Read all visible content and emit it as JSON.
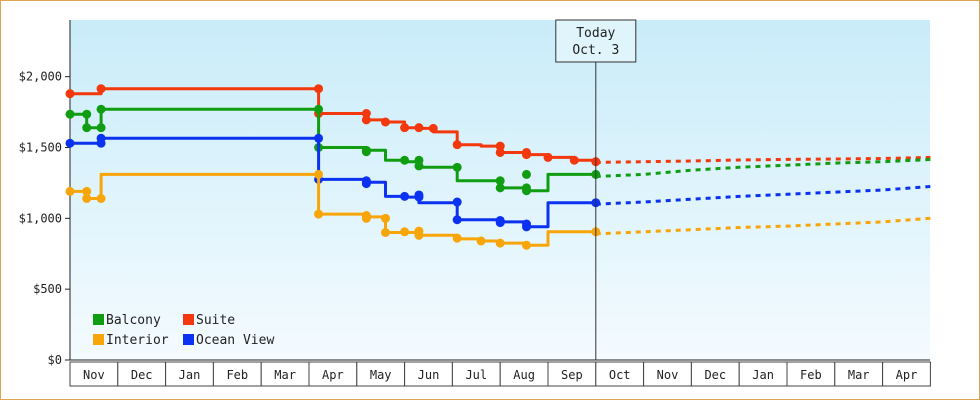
{
  "chart_data": {
    "type": "line",
    "ylim": [
      0,
      2400
    ],
    "y_ticks": [
      "$0",
      "$500",
      "$1,000",
      "$1,500",
      "$2,000"
    ],
    "y_tick_values": [
      0,
      500,
      1000,
      1500,
      2000
    ],
    "months": [
      "Nov",
      "Dec",
      "Jan",
      "Feb",
      "Mar",
      "Apr",
      "May",
      "Jun",
      "Jul",
      "Aug",
      "Sep",
      "Oct",
      "Nov",
      "Dec",
      "Jan",
      "Feb",
      "Mar",
      "Apr"
    ],
    "today": {
      "line1": "Today",
      "line2": "Oct. 3",
      "x": 11.0
    },
    "legend": [
      {
        "name": "Balcony",
        "color": "#119d11"
      },
      {
        "name": "Suite",
        "color": "#f2380c"
      },
      {
        "name": "Interior",
        "color": "#f7a509"
      },
      {
        "name": "Ocean View",
        "color": "#0b32f0"
      }
    ],
    "series": [
      {
        "name": "Suite",
        "color": "#f2380c",
        "x": [
          0.0,
          0.65,
          0.65,
          5.2,
          5.2,
          6.2,
          6.2,
          6.6,
          6.6,
          7.0,
          7.0,
          7.3,
          7.3,
          7.6,
          7.6,
          8.1,
          8.1,
          8.6,
          8.6,
          9.0,
          9.0,
          9.55,
          9.55,
          10.0,
          10.0,
          10.55,
          10.55,
          11.0
        ],
        "y": [
          1880,
          1880,
          1915,
          1915,
          1740,
          1740,
          1695,
          1695,
          1680,
          1680,
          1640,
          1640,
          1635,
          1635,
          1610,
          1610,
          1520,
          1520,
          1510,
          1510,
          1465,
          1465,
          1450,
          1450,
          1430,
          1430,
          1410,
          1410
        ],
        "markers": [
          [
            0.0,
            1880
          ],
          [
            0.65,
            1915
          ],
          [
            5.2,
            1915
          ],
          [
            5.2,
            1740
          ],
          [
            6.2,
            1740
          ],
          [
            6.2,
            1695
          ],
          [
            6.6,
            1680
          ],
          [
            7.0,
            1640
          ],
          [
            7.3,
            1640
          ],
          [
            7.6,
            1635
          ],
          [
            8.1,
            1520
          ],
          [
            9.0,
            1510
          ],
          [
            9.0,
            1465
          ],
          [
            9.55,
            1465
          ],
          [
            9.55,
            1450
          ],
          [
            10.0,
            1430
          ],
          [
            10.55,
            1410
          ],
          [
            11.0,
            1400
          ]
        ],
        "projection": [
          [
            11.0,
            1395
          ],
          [
            12.0,
            1400
          ],
          [
            13.0,
            1405
          ],
          [
            14.0,
            1412
          ],
          [
            15.0,
            1416
          ],
          [
            16.0,
            1419
          ],
          [
            17.0,
            1422
          ],
          [
            18.0,
            1430
          ]
        ]
      },
      {
        "name": "Balcony",
        "color": "#119d11",
        "x": [
          0.0,
          0.35,
          0.35,
          0.65,
          0.65,
          5.2,
          5.2,
          6.2,
          6.2,
          6.6,
          6.6,
          7.0,
          7.0,
          7.3,
          7.3,
          8.1,
          8.1,
          9.0,
          9.0,
          9.55,
          9.55,
          10.0,
          10.0,
          11.0
        ],
        "y": [
          1735,
          1735,
          1640,
          1640,
          1770,
          1770,
          1500,
          1500,
          1480,
          1480,
          1410,
          1410,
          1400,
          1400,
          1360,
          1360,
          1265,
          1265,
          1215,
          1215,
          1195,
          1195,
          1310,
          1310
        ],
        "markers": [
          [
            0.0,
            1735
          ],
          [
            0.35,
            1735
          ],
          [
            0.35,
            1640
          ],
          [
            0.65,
            1640
          ],
          [
            0.65,
            1770
          ],
          [
            5.2,
            1770
          ],
          [
            5.2,
            1500
          ],
          [
            6.2,
            1480
          ],
          [
            6.2,
            1470
          ],
          [
            7.0,
            1410
          ],
          [
            7.3,
            1410
          ],
          [
            7.3,
            1370
          ],
          [
            8.1,
            1360
          ],
          [
            9.0,
            1265
          ],
          [
            9.0,
            1215
          ],
          [
            9.55,
            1215
          ],
          [
            9.55,
            1195
          ],
          [
            9.55,
            1310
          ],
          [
            11.0,
            1310
          ]
        ],
        "projection": [
          [
            11.0,
            1295
          ],
          [
            12.0,
            1310
          ],
          [
            13.0,
            1340
          ],
          [
            14.0,
            1360
          ],
          [
            15.0,
            1375
          ],
          [
            16.0,
            1390
          ],
          [
            17.0,
            1400
          ],
          [
            18.0,
            1415
          ]
        ]
      },
      {
        "name": "Ocean View",
        "color": "#0b32f0",
        "x": [
          0.0,
          0.65,
          0.65,
          5.2,
          5.2,
          6.2,
          6.2,
          6.6,
          6.6,
          7.0,
          7.0,
          7.3,
          7.3,
          8.1,
          8.1,
          9.0,
          9.0,
          9.55,
          9.55,
          10.0,
          10.0,
          11.0
        ],
        "y": [
          1530,
          1530,
          1565,
          1565,
          1275,
          1275,
          1255,
          1255,
          1155,
          1155,
          1150,
          1150,
          1110,
          1110,
          990,
          990,
          975,
          975,
          940,
          940,
          1110,
          1110
        ],
        "markers": [
          [
            0.0,
            1530
          ],
          [
            0.65,
            1530
          ],
          [
            0.65,
            1565
          ],
          [
            5.2,
            1565
          ],
          [
            5.2,
            1275
          ],
          [
            6.2,
            1265
          ],
          [
            6.2,
            1245
          ],
          [
            7.0,
            1155
          ],
          [
            7.3,
            1165
          ],
          [
            7.3,
            1150
          ],
          [
            8.1,
            1115
          ],
          [
            8.1,
            990
          ],
          [
            9.0,
            985
          ],
          [
            9.0,
            970
          ],
          [
            9.55,
            960
          ],
          [
            9.55,
            940
          ],
          [
            11.0,
            1110
          ]
        ],
        "projection": [
          [
            11.0,
            1100
          ],
          [
            12.0,
            1115
          ],
          [
            13.0,
            1135
          ],
          [
            14.0,
            1155
          ],
          [
            15.0,
            1170
          ],
          [
            16.0,
            1185
          ],
          [
            17.0,
            1200
          ],
          [
            18.0,
            1225
          ]
        ]
      },
      {
        "name": "Interior",
        "color": "#f7a509",
        "x": [
          0.0,
          0.35,
          0.35,
          0.65,
          0.65,
          5.2,
          5.2,
          6.2,
          6.2,
          6.6,
          6.6,
          7.3,
          7.3,
          8.1,
          8.1,
          8.6,
          8.6,
          9.0,
          9.0,
          9.55,
          9.55,
          10.0,
          10.0,
          11.0
        ],
        "y": [
          1190,
          1190,
          1140,
          1140,
          1310,
          1310,
          1030,
          1030,
          1010,
          1010,
          900,
          900,
          880,
          880,
          855,
          855,
          840,
          840,
          825,
          825,
          810,
          810,
          905,
          905
        ],
        "markers": [
          [
            0.0,
            1190
          ],
          [
            0.35,
            1190
          ],
          [
            0.35,
            1140
          ],
          [
            0.65,
            1140
          ],
          [
            5.2,
            1310
          ],
          [
            5.2,
            1030
          ],
          [
            6.2,
            1020
          ],
          [
            6.2,
            1000
          ],
          [
            6.6,
            1000
          ],
          [
            6.6,
            900
          ],
          [
            7.0,
            905
          ],
          [
            7.3,
            910
          ],
          [
            7.3,
            880
          ],
          [
            8.1,
            860
          ],
          [
            8.6,
            840
          ],
          [
            9.0,
            825
          ],
          [
            9.55,
            810
          ],
          [
            11.0,
            905
          ]
        ],
        "projection": [
          [
            11.0,
            890
          ],
          [
            12.0,
            905
          ],
          [
            13.0,
            920
          ],
          [
            14.0,
            935
          ],
          [
            15.0,
            945
          ],
          [
            16.0,
            960
          ],
          [
            17.0,
            975
          ],
          [
            18.0,
            1000
          ]
        ]
      }
    ]
  }
}
